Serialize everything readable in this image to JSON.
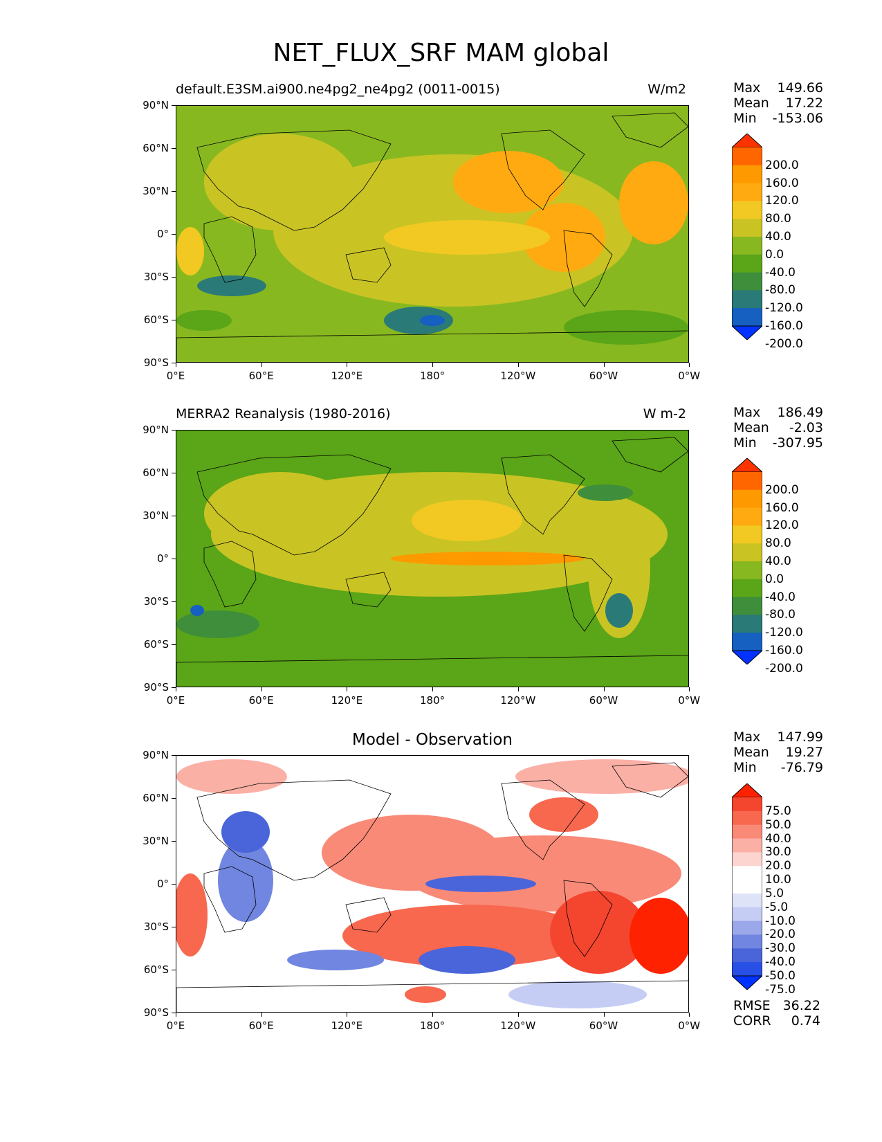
{
  "title": "NET_FLUX_SRF MAM global",
  "panels": [
    {
      "left_title": "default.E3SM.ai900.ne4pg2_ne4pg2 (0011-0015)",
      "right_title": "W/m2",
      "center_title": "",
      "stats": {
        "max_label": "Max",
        "max": "149.66",
        "mean_label": "Mean",
        "mean": "17.22",
        "min_label": "Min",
        "min": "-153.06"
      },
      "colorbar_labels": [
        "200.0",
        "160.0",
        "120.0",
        "80.0",
        "40.0",
        "0.0",
        "-40.0",
        "-80.0",
        "-120.0",
        "-160.0",
        "-200.0"
      ]
    },
    {
      "left_title": "MERRA2 Reanalysis (1980-2016)",
      "right_title": "W m-2",
      "center_title": "",
      "stats": {
        "max_label": "Max",
        "max": "186.49",
        "mean_label": "Mean",
        "mean": "-2.03",
        "min_label": "Min",
        "min": "-307.95"
      },
      "colorbar_labels": [
        "200.0",
        "160.0",
        "120.0",
        "80.0",
        "40.0",
        "0.0",
        "-40.0",
        "-80.0",
        "-120.0",
        "-160.0",
        "-200.0"
      ]
    },
    {
      "left_title": "",
      "right_title": "",
      "center_title": "Model - Observation",
      "stats": {
        "max_label": "Max",
        "max": "147.99",
        "mean_label": "Mean",
        "mean": "19.27",
        "min_label": "Min",
        "min": "-76.79"
      },
      "colorbar_labels": [
        "75.0",
        "50.0",
        "40.0",
        "30.0",
        "20.0",
        "10.0",
        "5.0",
        "-5.0",
        "-10.0",
        "-20.0",
        "-30.0",
        "-40.0",
        "-50.0",
        "-75.0"
      ]
    }
  ],
  "metrics": {
    "rmse_label": "RMSE",
    "rmse": "36.22",
    "corr_label": "CORR",
    "corr": "0.74"
  },
  "lat_ticks": [
    "90°N",
    "60°N",
    "30°N",
    "0°",
    "30°S",
    "60°S",
    "90°S"
  ],
  "lon_ticks": [
    "0°E",
    "60°E",
    "120°E",
    "180°",
    "120°W",
    "60°W",
    "0°W"
  ],
  "colors": {
    "abs_scale": [
      "#ff3300",
      "#ff6600",
      "#ff9900",
      "#ffaa11",
      "#f2c922",
      "#c9c424",
      "#88b820",
      "#5aa518",
      "#3e8e3c",
      "#2a7a78",
      "#1560c0",
      "#0033ff"
    ],
    "diff_scale": [
      "#ff2200",
      "#f4452f",
      "#f7684f",
      "#f98a78",
      "#fbb0a6",
      "#fdd5d0",
      "#ffffff",
      "#ffffff",
      "#dfe3f8",
      "#c6cdf4",
      "#9aa8ea",
      "#7186e0",
      "#4a65da",
      "#2850e6",
      "#0033ff"
    ]
  }
}
